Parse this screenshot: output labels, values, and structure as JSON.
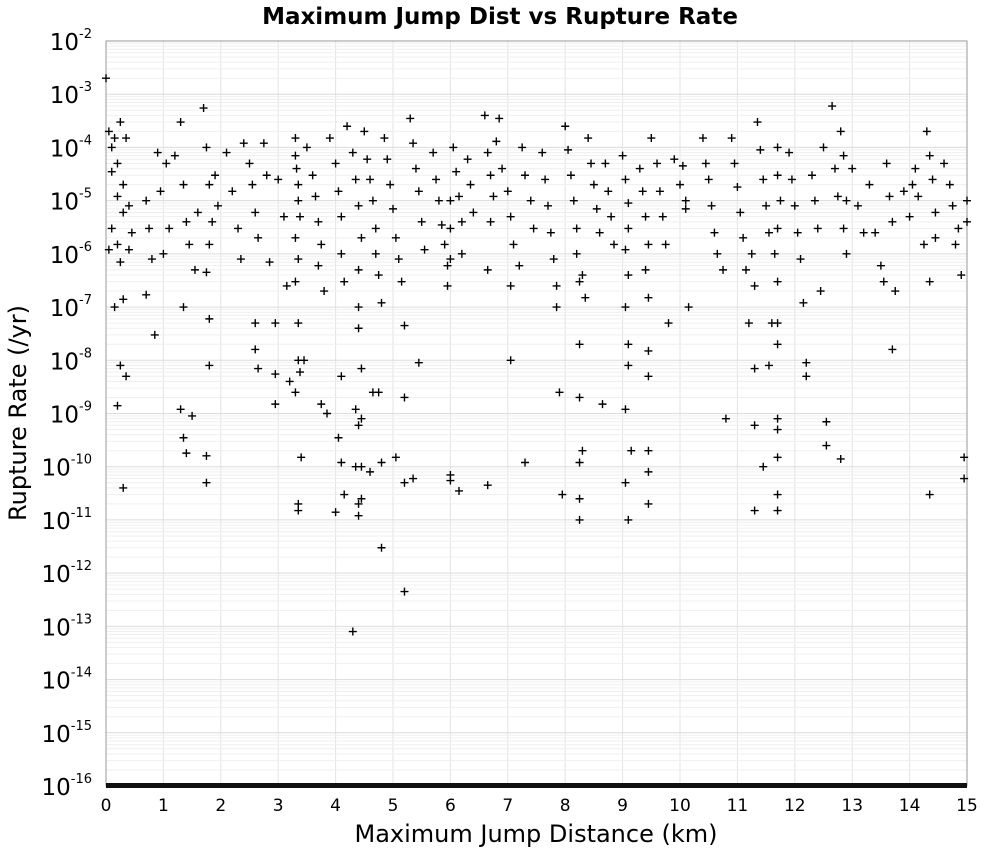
{
  "chart_data": {
    "type": "scatter",
    "title": "Maximum Jump Dist vs Rupture Rate",
    "xlabel": "Maximum Jump Distance (km)",
    "ylabel": "Rupture Rate (/yr)",
    "xlim": [
      0,
      15
    ],
    "ylim": [
      1e-16,
      0.01
    ],
    "yscale": "log",
    "grid": true,
    "marker": "+",
    "marker_color": "#000000",
    "x_ticks": [
      "0",
      "1",
      "2",
      "3",
      "4",
      "5",
      "6",
      "7",
      "8",
      "9",
      "10",
      "11",
      "12",
      "13",
      "14",
      "15"
    ],
    "y_ticks": [
      {
        "base": "10",
        "exp": "-2"
      },
      {
        "base": "10",
        "exp": "-3"
      },
      {
        "base": "10",
        "exp": "-4"
      },
      {
        "base": "10",
        "exp": "-5"
      },
      {
        "base": "10",
        "exp": "-6"
      },
      {
        "base": "10",
        "exp": "-7"
      },
      {
        "base": "10",
        "exp": "-8"
      },
      {
        "base": "10",
        "exp": "-9"
      },
      {
        "base": "10",
        "exp": "-10"
      },
      {
        "base": "10",
        "exp": "-11"
      },
      {
        "base": "10",
        "exp": "-12"
      },
      {
        "base": "10",
        "exp": "-13"
      },
      {
        "base": "10",
        "exp": "-14"
      },
      {
        "base": "10",
        "exp": "-15"
      },
      {
        "base": "10",
        "exp": "-16"
      }
    ],
    "points": [
      [
        0.0,
        0.002
      ],
      [
        0.05,
        0.0002
      ],
      [
        0.1,
        0.0001
      ],
      [
        0.1,
        3.5e-05
      ],
      [
        0.15,
        0.00015
      ],
      [
        0.2,
        5e-05
      ],
      [
        0.2,
        1.2e-05
      ],
      [
        0.25,
        0.0003
      ],
      [
        0.3,
        2e-05
      ],
      [
        0.3,
        6e-06
      ],
      [
        0.35,
        0.00015
      ],
      [
        0.4,
        8e-06
      ],
      [
        0.4,
        1.2e-06
      ],
      [
        0.2,
        1.5e-06
      ],
      [
        0.25,
        7e-07
      ],
      [
        0.3,
        1.4e-07
      ],
      [
        0.15,
        1e-07
      ],
      [
        0.25,
        8e-09
      ],
      [
        0.35,
        5e-09
      ],
      [
        0.2,
        1.4e-09
      ],
      [
        0.3,
        4e-11
      ],
      [
        0.1,
        3e-06
      ],
      [
        0.05,
        1.2e-06
      ],
      [
        0.45,
        2.5e-06
      ],
      [
        0.7,
        1e-05
      ],
      [
        0.75,
        3e-06
      ],
      [
        0.8,
        8e-07
      ],
      [
        0.9,
        8e-05
      ],
      [
        0.95,
        1.5e-05
      ],
      [
        1.0,
        1e-06
      ],
      [
        0.85,
        3e-08
      ],
      [
        0.7,
        1.7e-07
      ],
      [
        1.05,
        5e-05
      ],
      [
        1.1,
        3e-06
      ],
      [
        1.2,
        7e-05
      ],
      [
        1.3,
        0.0003
      ],
      [
        1.35,
        2e-05
      ],
      [
        1.4,
        4e-06
      ],
      [
        1.45,
        1.5e-06
      ],
      [
        1.35,
        1e-07
      ],
      [
        1.3,
        1.2e-09
      ],
      [
        1.35,
        3.5e-10
      ],
      [
        1.4,
        1.8e-10
      ],
      [
        1.5,
        9e-10
      ],
      [
        1.55,
        5e-07
      ],
      [
        1.6,
        6e-06
      ],
      [
        1.7,
        0.00055
      ],
      [
        1.75,
        0.0001
      ],
      [
        1.8,
        2e-05
      ],
      [
        1.85,
        4e-06
      ],
      [
        1.8,
        1.5e-06
      ],
      [
        1.75,
        4.5e-07
      ],
      [
        1.8,
        6e-08
      ],
      [
        1.8,
        8e-09
      ],
      [
        1.75,
        1.6e-10
      ],
      [
        1.75,
        5e-11
      ],
      [
        1.9,
        3e-05
      ],
      [
        1.95,
        8e-06
      ],
      [
        2.1,
        8e-05
      ],
      [
        2.2,
        1.5e-05
      ],
      [
        2.3,
        3e-06
      ],
      [
        2.35,
        8e-07
      ],
      [
        2.4,
        0.00012
      ],
      [
        2.5,
        5e-05
      ],
      [
        2.55,
        2e-05
      ],
      [
        2.6,
        6e-06
      ],
      [
        2.65,
        2e-06
      ],
      [
        2.6,
        5e-08
      ],
      [
        2.6,
        1.6e-08
      ],
      [
        2.65,
        7e-09
      ],
      [
        2.75,
        0.00012
      ],
      [
        2.8,
        3e-05
      ],
      [
        2.85,
        7e-07
      ],
      [
        2.95,
        5e-08
      ],
      [
        2.95,
        5.5e-09
      ],
      [
        2.95,
        1.5e-09
      ],
      [
        3.0,
        2.5e-05
      ],
      [
        3.1,
        5e-06
      ],
      [
        3.15,
        2.5e-07
      ],
      [
        3.2,
        4e-09
      ],
      [
        3.3,
        0.00015
      ],
      [
        3.3,
        7e-05
      ],
      [
        3.32,
        4e-05
      ],
      [
        3.35,
        2e-05
      ],
      [
        3.35,
        1e-05
      ],
      [
        3.38,
        5e-06
      ],
      [
        3.3,
        2e-06
      ],
      [
        3.35,
        8e-07
      ],
      [
        3.3,
        3e-07
      ],
      [
        3.35,
        5e-08
      ],
      [
        3.35,
        1e-08
      ],
      [
        3.3,
        2.5e-09
      ],
      [
        3.38,
        6e-09
      ],
      [
        3.4,
        1.5e-10
      ],
      [
        3.35,
        2e-11
      ],
      [
        3.35,
        1.5e-11
      ],
      [
        3.45,
        1e-08
      ],
      [
        3.5,
        0.0001
      ],
      [
        3.6,
        3e-05
      ],
      [
        3.65,
        1.2e-05
      ],
      [
        3.7,
        4e-06
      ],
      [
        3.75,
        1.5e-06
      ],
      [
        3.7,
        6e-07
      ],
      [
        3.8,
        2e-07
      ],
      [
        3.75,
        1.5e-09
      ],
      [
        3.85,
        1e-09
      ],
      [
        3.9,
        0.00015
      ],
      [
        4.0,
        5e-05
      ],
      [
        4.05,
        1.5e-05
      ],
      [
        4.1,
        5e-06
      ],
      [
        4.1,
        1e-06
      ],
      [
        4.15,
        3e-07
      ],
      [
        4.1,
        5e-09
      ],
      [
        4.05,
        3.5e-10
      ],
      [
        4.1,
        1.2e-10
      ],
      [
        4.15,
        3e-11
      ],
      [
        4.0,
        1.4e-11
      ],
      [
        4.2,
        0.00025
      ],
      [
        4.3,
        8e-05
      ],
      [
        4.35,
        2.5e-05
      ],
      [
        4.4,
        8e-06
      ],
      [
        4.45,
        2e-06
      ],
      [
        4.4,
        5e-07
      ],
      [
        4.4,
        1e-07
      ],
      [
        4.4,
        4e-08
      ],
      [
        4.35,
        1.2e-09
      ],
      [
        4.4,
        6e-10
      ],
      [
        4.45,
        8e-10
      ],
      [
        4.35,
        1e-10
      ],
      [
        4.45,
        1e-10
      ],
      [
        4.4,
        2e-11
      ],
      [
        4.45,
        2.5e-11
      ],
      [
        4.4,
        1.2e-11
      ],
      [
        4.3,
        8e-14
      ],
      [
        4.45,
        7e-09
      ],
      [
        4.5,
        0.0002
      ],
      [
        4.55,
        6e-05
      ],
      [
        4.6,
        2.5e-05
      ],
      [
        4.65,
        1e-05
      ],
      [
        4.7,
        3e-06
      ],
      [
        4.7,
        1e-06
      ],
      [
        4.75,
        4e-07
      ],
      [
        4.8,
        1.2e-07
      ],
      [
        4.75,
        2.5e-09
      ],
      [
        4.8,
        1.2e-10
      ],
      [
        4.8,
        3e-12
      ],
      [
        4.65,
        2.5e-09
      ],
      [
        4.6,
        8e-11
      ],
      [
        4.85,
        0.00015
      ],
      [
        4.9,
        6e-05
      ],
      [
        4.95,
        2e-05
      ],
      [
        5.0,
        7e-06
      ],
      [
        5.05,
        2e-06
      ],
      [
        5.1,
        8e-07
      ],
      [
        5.15,
        3e-07
      ],
      [
        5.05,
        1.5e-10
      ],
      [
        5.2,
        2e-09
      ],
      [
        5.2,
        5e-11
      ],
      [
        5.2,
        4.5e-13
      ],
      [
        5.2,
        4.5e-08
      ],
      [
        5.3,
        0.00035
      ],
      [
        5.35,
        0.00012
      ],
      [
        5.4,
        4e-05
      ],
      [
        5.45,
        1.5e-05
      ],
      [
        5.5,
        4e-06
      ],
      [
        5.55,
        1.2e-06
      ],
      [
        5.45,
        9e-09
      ],
      [
        5.35,
        6e-11
      ],
      [
        5.7,
        8e-05
      ],
      [
        5.75,
        2.5e-05
      ],
      [
        5.8,
        1e-05
      ],
      [
        5.85,
        3.5e-06
      ],
      [
        5.9,
        1.5e-06
      ],
      [
        5.95,
        6e-07
      ],
      [
        5.95,
        2.5e-07
      ],
      [
        6.0,
        1e-05
      ],
      [
        6.0,
        3e-06
      ],
      [
        6.0,
        8e-07
      ],
      [
        6.0,
        7e-11
      ],
      [
        6.0,
        5.5e-11
      ],
      [
        6.05,
        0.0001
      ],
      [
        6.1,
        3.5e-05
      ],
      [
        6.15,
        1.2e-05
      ],
      [
        6.2,
        4e-06
      ],
      [
        6.2,
        1e-06
      ],
      [
        6.15,
        3.5e-11
      ],
      [
        6.3,
        6e-05
      ],
      [
        6.35,
        2e-05
      ],
      [
        6.4,
        6e-06
      ],
      [
        6.6,
        0.0004
      ],
      [
        6.65,
        8e-05
      ],
      [
        6.7,
        3e-05
      ],
      [
        6.75,
        1.2e-05
      ],
      [
        6.7,
        4e-06
      ],
      [
        6.65,
        5e-07
      ],
      [
        6.65,
        4.5e-11
      ],
      [
        6.8,
        0.00013
      ],
      [
        6.85,
        0.00035
      ],
      [
        6.9,
        4e-05
      ],
      [
        7.0,
        1.5e-05
      ],
      [
        7.05,
        5e-06
      ],
      [
        7.1,
        1.5e-06
      ],
      [
        7.05,
        2.5e-07
      ],
      [
        7.05,
        1e-08
      ],
      [
        7.2,
        6e-07
      ],
      [
        7.3,
        1.2e-10
      ],
      [
        7.25,
        0.0001
      ],
      [
        7.3,
        3e-05
      ],
      [
        7.4,
        1e-05
      ],
      [
        7.45,
        3e-06
      ],
      [
        7.6,
        8e-05
      ],
      [
        7.65,
        2.5e-05
      ],
      [
        7.7,
        8e-06
      ],
      [
        7.75,
        2.5e-06
      ],
      [
        7.8,
        8e-07
      ],
      [
        7.85,
        2.5e-07
      ],
      [
        7.85,
        1e-07
      ],
      [
        7.9,
        2.5e-09
      ],
      [
        7.95,
        3e-11
      ],
      [
        8.0,
        0.00025
      ],
      [
        8.05,
        9e-05
      ],
      [
        8.1,
        3e-05
      ],
      [
        8.15,
        1e-05
      ],
      [
        8.2,
        3e-06
      ],
      [
        8.2,
        1e-06
      ],
      [
        8.25,
        3e-07
      ],
      [
        8.25,
        2e-08
      ],
      [
        8.25,
        2e-09
      ],
      [
        8.3,
        2e-10
      ],
      [
        8.25,
        1.2e-10
      ],
      [
        8.25,
        2.5e-11
      ],
      [
        8.25,
        1e-11
      ],
      [
        8.3,
        4e-07
      ],
      [
        8.35,
        1.5e-07
      ],
      [
        8.4,
        0.00015
      ],
      [
        8.45,
        5e-05
      ],
      [
        8.5,
        2e-05
      ],
      [
        8.55,
        7e-06
      ],
      [
        8.6,
        2.5e-06
      ],
      [
        8.65,
        1.5e-09
      ],
      [
        8.7,
        5e-05
      ],
      [
        8.75,
        1.5e-05
      ],
      [
        8.8,
        5e-06
      ],
      [
        8.85,
        1.5e-06
      ],
      [
        9.0,
        7e-05
      ],
      [
        9.05,
        2.5e-05
      ],
      [
        9.1,
        9e-06
      ],
      [
        9.1,
        3e-06
      ],
      [
        9.05,
        1.2e-06
      ],
      [
        9.1,
        4e-07
      ],
      [
        9.05,
        1e-07
      ],
      [
        9.1,
        2e-08
      ],
      [
        9.1,
        8e-09
      ],
      [
        9.05,
        1.2e-09
      ],
      [
        9.15,
        2e-10
      ],
      [
        9.05,
        5e-11
      ],
      [
        9.1,
        1e-11
      ],
      [
        9.3,
        4e-05
      ],
      [
        9.35,
        1.5e-05
      ],
      [
        9.4,
        5e-06
      ],
      [
        9.45,
        1.5e-06
      ],
      [
        9.4,
        5e-07
      ],
      [
        9.45,
        1.5e-07
      ],
      [
        9.45,
        1.5e-08
      ],
      [
        9.45,
        5e-09
      ],
      [
        9.45,
        2e-10
      ],
      [
        9.45,
        8e-11
      ],
      [
        9.45,
        2e-11
      ],
      [
        9.5,
        0.00015
      ],
      [
        9.6,
        5e-05
      ],
      [
        9.65,
        1.5e-05
      ],
      [
        9.7,
        5e-06
      ],
      [
        9.75,
        1.5e-06
      ],
      [
        9.8,
        5e-08
      ],
      [
        9.9,
        6e-05
      ],
      [
        10.0,
        2e-05
      ],
      [
        10.05,
        4.5e-05
      ],
      [
        10.1,
        1e-05
      ],
      [
        10.1,
        7e-06
      ],
      [
        10.15,
        1e-07
      ],
      [
        10.4,
        0.00015
      ],
      [
        10.45,
        5e-05
      ],
      [
        10.5,
        2.5e-05
      ],
      [
        10.55,
        8e-06
      ],
      [
        10.6,
        2.5e-06
      ],
      [
        10.65,
        1e-06
      ],
      [
        10.75,
        5e-07
      ],
      [
        10.8,
        8e-10
      ],
      [
        10.9,
        0.00015
      ],
      [
        10.95,
        5e-05
      ],
      [
        11.0,
        1.8e-05
      ],
      [
        11.05,
        6e-06
      ],
      [
        11.1,
        2e-06
      ],
      [
        11.15,
        5e-07
      ],
      [
        11.2,
        5e-08
      ],
      [
        11.25,
        1e-06
      ],
      [
        11.3,
        2.5e-07
      ],
      [
        11.3,
        7e-09
      ],
      [
        11.3,
        6e-10
      ],
      [
        11.3,
        1.5e-11
      ],
      [
        11.35,
        0.0003
      ],
      [
        11.4,
        9e-05
      ],
      [
        11.45,
        2.5e-05
      ],
      [
        11.5,
        8e-06
      ],
      [
        11.55,
        2.5e-06
      ],
      [
        11.45,
        1e-10
      ],
      [
        11.55,
        8e-09
      ],
      [
        11.6,
        5e-08
      ],
      [
        11.7,
        0.0001
      ],
      [
        11.7,
        3e-05
      ],
      [
        11.75,
        1e-05
      ],
      [
        11.7,
        3e-06
      ],
      [
        11.65,
        1e-06
      ],
      [
        11.7,
        3e-07
      ],
      [
        11.7,
        5e-08
      ],
      [
        11.7,
        2e-08
      ],
      [
        11.7,
        8e-10
      ],
      [
        11.7,
        5e-10
      ],
      [
        11.7,
        1.5e-10
      ],
      [
        11.7,
        3e-11
      ],
      [
        11.7,
        1.5e-11
      ],
      [
        11.9,
        8e-05
      ],
      [
        11.95,
        2.5e-05
      ],
      [
        12.0,
        8e-06
      ],
      [
        12.05,
        2.5e-06
      ],
      [
        12.1,
        8e-07
      ],
      [
        12.15,
        1.2e-07
      ],
      [
        12.2,
        5e-09
      ],
      [
        12.2,
        9e-09
      ],
      [
        12.3,
        3e-05
      ],
      [
        12.35,
        1e-05
      ],
      [
        12.4,
        3e-06
      ],
      [
        12.45,
        2e-07
      ],
      [
        12.5,
        0.0001
      ],
      [
        12.55,
        7e-10
      ],
      [
        12.55,
        2.5e-10
      ],
      [
        12.65,
        0.0006
      ],
      [
        12.7,
        4e-05
      ],
      [
        12.75,
        1.2e-05
      ],
      [
        12.8,
        0.0002
      ],
      [
        12.85,
        7e-05
      ],
      [
        12.9,
        1e-05
      ],
      [
        12.85,
        3e-06
      ],
      [
        12.9,
        1e-06
      ],
      [
        12.8,
        1.4e-10
      ],
      [
        13.0,
        4e-05
      ],
      [
        13.1,
        8e-06
      ],
      [
        13.2,
        2.5e-06
      ],
      [
        13.3,
        2e-05
      ],
      [
        13.4,
        2.5e-06
      ],
      [
        13.5,
        6e-07
      ],
      [
        13.55,
        3e-07
      ],
      [
        13.6,
        5e-05
      ],
      [
        13.65,
        1.2e-05
      ],
      [
        13.7,
        4e-06
      ],
      [
        13.7,
        1.6e-08
      ],
      [
        13.75,
        2e-07
      ],
      [
        13.9,
        1.5e-05
      ],
      [
        14.0,
        5e-06
      ],
      [
        14.05,
        2e-05
      ],
      [
        14.1,
        4e-05
      ],
      [
        14.15,
        1.2e-05
      ],
      [
        14.25,
        1.5e-06
      ],
      [
        14.3,
        0.0002
      ],
      [
        14.35,
        7e-05
      ],
      [
        14.4,
        2.5e-05
      ],
      [
        14.45,
        6e-06
      ],
      [
        14.45,
        2e-06
      ],
      [
        14.35,
        3e-07
      ],
      [
        14.35,
        3e-11
      ],
      [
        14.6,
        5e-05
      ],
      [
        14.7,
        2e-05
      ],
      [
        14.75,
        8e-06
      ],
      [
        14.8,
        1.5e-06
      ],
      [
        14.85,
        3e-06
      ],
      [
        14.9,
        4e-07
      ],
      [
        14.95,
        1.5e-10
      ],
      [
        14.95,
        6e-11
      ],
      [
        15.0,
        1e-05
      ],
      [
        15.0,
        4e-06
      ]
    ],
    "floor_value": 1e-16,
    "floor_note": "dense band of markers at the axis floor"
  }
}
